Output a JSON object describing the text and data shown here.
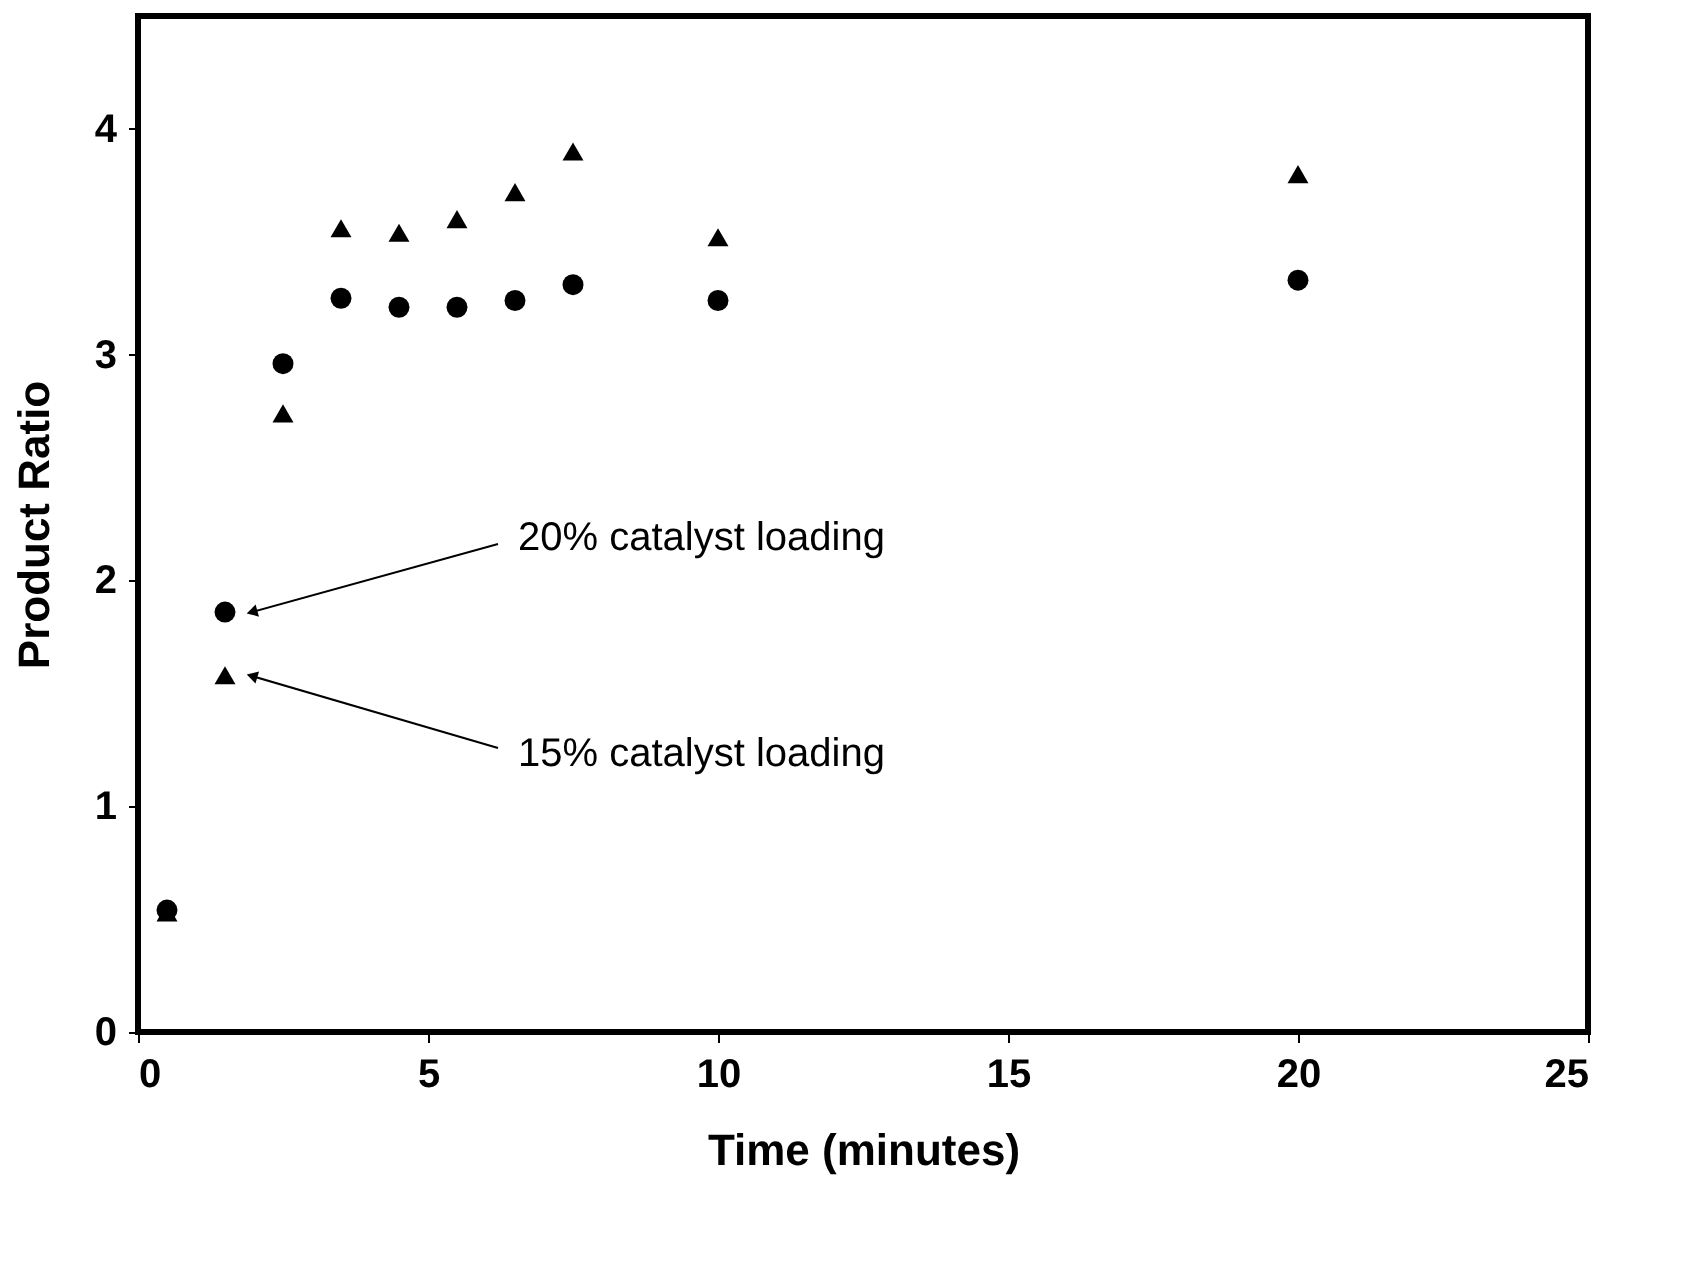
{
  "chart_data": {
    "type": "scatter",
    "xlabel": "Time (minutes)",
    "ylabel": "Product Ratio",
    "xlim": [
      0,
      25
    ],
    "xticks": [
      0,
      5,
      10,
      15,
      20,
      25
    ],
    "ylim": [
      0,
      4.5
    ],
    "yticks": [
      0,
      1,
      2,
      3,
      4
    ],
    "grid": false,
    "series": [
      {
        "color": "#000000",
        "marker": "circle",
        "x": [
          0.5,
          1.5,
          2.5,
          3.5,
          4.5,
          5.5,
          6.5,
          7.5,
          10,
          20
        ],
        "values": [
          0.54,
          1.86,
          2.96,
          3.25,
          3.21,
          3.21,
          3.24,
          3.31,
          3.24,
          3.33
        ]
      },
      {
        "color": "#000000",
        "marker": "triangle",
        "x": [
          0.5,
          1.5,
          2.5,
          3.5,
          4.5,
          5.5,
          6.5,
          7.5,
          10,
          20
        ],
        "values": [
          0.53,
          1.58,
          2.74,
          3.56,
          3.54,
          3.6,
          3.72,
          3.9,
          3.52,
          3.8
        ]
      }
    ],
    "annotations": [
      "20% catalyst loading",
      "15% catalyst loading"
    ]
  }
}
